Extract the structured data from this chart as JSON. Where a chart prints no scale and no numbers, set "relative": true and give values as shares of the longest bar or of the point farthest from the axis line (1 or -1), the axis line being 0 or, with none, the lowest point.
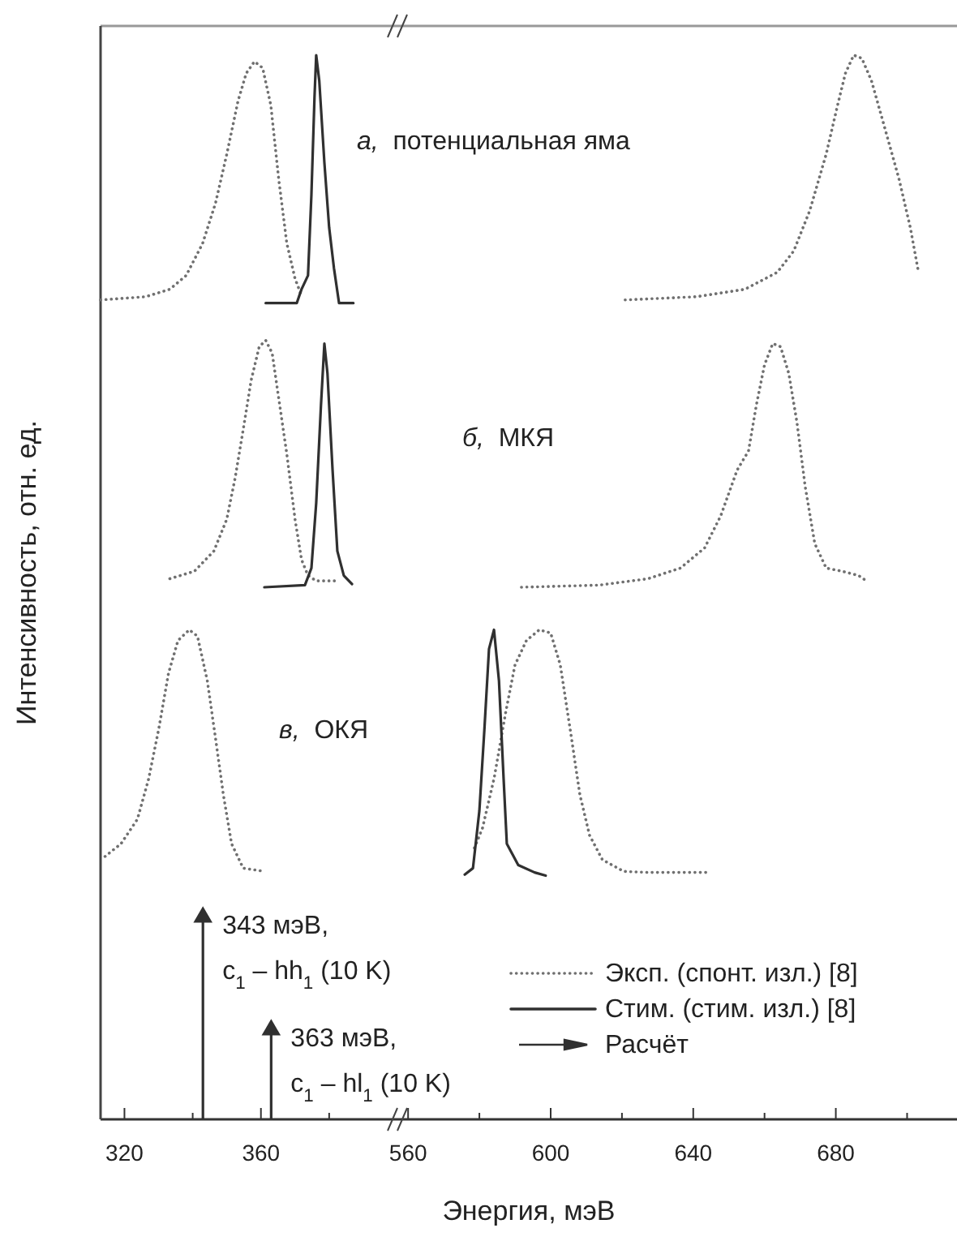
{
  "chart_data": [
    {
      "type": "line",
      "relative": true,
      "xlabel": "Энергия, мэВ",
      "ylabel": "Интенсивность, отн. ед.",
      "xlim": [
        313,
        400
      ],
      "xticks": [
        320,
        {
          "value": 340,
          "label": null
        },
        360,
        {
          "value": 380,
          "label": null
        }
      ],
      "annotations": [
        "а,  потенциальная яма",
        "б,  МКЯ",
        "в,  ОКЯ",
        {
          "text": "343 мэВ,\nc$_{1}$ – hh$_{1}$ (10 K)",
          "x": 343,
          "y": 0.19
        },
        {
          "text": "363 мэВ,\nc$_{1}$ – hl$_{1}$ (10 K)",
          "x": 363,
          "y": 0.084
        }
      ],
      "series": [
        {
          "line_style": "dotted",
          "color": "#707070",
          "x": [
            313,
            326.2,
            333.3,
            338.1,
            342.9,
            346.7,
            350,
            353.3,
            355.7,
            358.1,
            360.5,
            362.9,
            365.2,
            367.6,
            370,
            371.9
          ],
          "values": [
            0.77,
            0.773,
            0.78,
            0.793,
            0.823,
            0.861,
            0.907,
            0.957,
            0.983,
            0.994,
            0.988,
            0.953,
            0.884,
            0.823,
            0.79,
            0.774
          ]
        },
        {
          "line_style": "solid",
          "color": "#303030",
          "x": [
            361.4,
            370.5,
            371.9,
            373.8,
            374.8,
            375.7,
            376.2,
            377.1,
            378.6,
            380,
            381.4,
            382.9,
            387.1
          ],
          "values": [
            0.767,
            0.767,
            0.78,
            0.793,
            0.869,
            0.96,
            1,
            0.976,
            0.899,
            0.838,
            0.8,
            0.767,
            0.767
          ]
        },
        {
          "line_style": "dotted",
          "color": "#707070",
          "x": [
            333.3,
            340.5,
            346.2,
            350,
            352.4,
            354.8,
            357.1,
            359.5,
            361.4,
            363.3,
            365.2,
            367.6,
            370,
            371.9,
            373.8,
            376.2,
            382.4
          ],
          "values": [
            0.508,
            0.515,
            0.534,
            0.564,
            0.602,
            0.648,
            0.694,
            0.726,
            0.732,
            0.72,
            0.678,
            0.625,
            0.564,
            0.526,
            0.511,
            0.506,
            0.506
          ]
        },
        {
          "line_style": "solid",
          "color": "#303030",
          "x": [
            361,
            372.9,
            374.8,
            376.2,
            377.6,
            378.6,
            379.5,
            381,
            382.4,
            384.3,
            386.7
          ],
          "values": [
            0.5,
            0.502,
            0.518,
            0.579,
            0.671,
            0.729,
            0.701,
            0.61,
            0.534,
            0.511,
            0.503
          ]
        },
        {
          "line_style": "dotted",
          "color": "#707070",
          "x": [
            314.3,
            319,
            323.8,
            327.1,
            330,
            332.9,
            335.7,
            339,
            341.4,
            344.3,
            346.7,
            349,
            351.4,
            354.8,
            361
          ],
          "values": [
            0.247,
            0.259,
            0.282,
            0.32,
            0.366,
            0.419,
            0.45,
            0.46,
            0.454,
            0.412,
            0.358,
            0.305,
            0.259,
            0.236,
            0.233
          ]
        },
        {
          "type": "lollipop",
          "name": "Расчёт",
          "marker": "triangle",
          "color": "#303030",
          "x": [
            343,
            363
          ],
          "values": [
            0.19,
            0.084
          ]
        }
      ]
    },
    {
      "type": "line",
      "relative": true,
      "xlim": [
        557,
        714
      ],
      "xticks": [
        560,
        {
          "value": 580,
          "label": null
        },
        600,
        {
          "value": 620,
          "label": null
        },
        640,
        {
          "value": 660,
          "label": null
        },
        680,
        {
          "value": 700,
          "label": null
        }
      ],
      "legend": "bottom right",
      "series": [
        {
          "name": "Эксп. (спонт. изл.) [8]",
          "line_style": "dotted",
          "color": "#707070",
          "x": [
            620.9,
            640.9,
            654.5,
            663.6,
            668.2,
            672.7,
            677.3,
            680.5,
            682.7,
            685,
            687.3,
            690,
            693.2,
            697.7,
            700.9,
            703.2
          ],
          "values": [
            0.77,
            0.773,
            0.78,
            0.796,
            0.816,
            0.854,
            0.907,
            0.953,
            0.983,
            1,
            0.997,
            0.976,
            0.938,
            0.884,
            0.838,
            0.796
          ]
        },
        {
          "line_style": "dotted",
          "color": "#707070",
          "x": [
            591.8,
            613.6,
            627.3,
            636.4,
            643.2,
            647.7,
            652.3,
            655.5,
            657.7,
            660,
            662.3,
            664.5,
            666.8,
            669.1,
            671.4,
            674.1,
            677.3,
            681.8,
            686.4,
            688.6
          ],
          "values": [
            0.5,
            0.502,
            0.508,
            0.518,
            0.537,
            0.567,
            0.61,
            0.628,
            0.671,
            0.709,
            0.729,
            0.726,
            0.701,
            0.655,
            0.595,
            0.541,
            0.518,
            0.515,
            0.511,
            0.506
          ]
        },
        {
          "line_style": "dotted",
          "color": "#707070",
          "x": [
            578.6,
            580.9,
            584.1,
            587.3,
            590,
            593.2,
            596.8,
            600,
            602.7,
            605.5,
            608.2,
            610.9,
            614.5,
            620.5,
            627.3,
            644.5
          ],
          "values": [
            0.255,
            0.274,
            0.32,
            0.381,
            0.427,
            0.45,
            0.46,
            0.457,
            0.427,
            0.366,
            0.305,
            0.267,
            0.244,
            0.233,
            0.232,
            0.232
          ]
        },
        {
          "name": "Стим. (стим. изл.) [8]",
          "line_style": "solid",
          "color": "#303030",
          "x": [
            575.9,
            578.2,
            580,
            581.4,
            582.7,
            584.1,
            585.5,
            586.8,
            587.7,
            590.9,
            595.5,
            598.6
          ],
          "values": [
            0.23,
            0.236,
            0.29,
            0.366,
            0.442,
            0.46,
            0.412,
            0.32,
            0.259,
            0.239,
            0.232,
            0.229
          ]
        }
      ]
    }
  ]
}
